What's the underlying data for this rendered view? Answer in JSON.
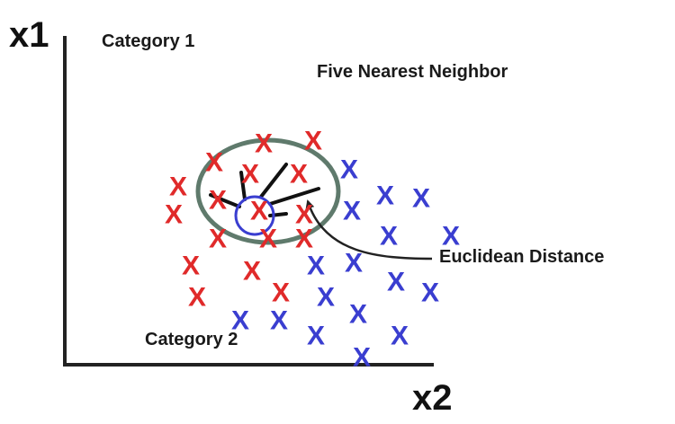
{
  "axes": {
    "x_label": "x2",
    "y_label": "x1"
  },
  "labels": {
    "category_1": "Category 1",
    "category_2": "Category 2",
    "title": "Five Nearest Neighbor",
    "distance": "Euclidean Distance"
  },
  "marker_symbol": "X",
  "colors": {
    "category_1": "#e02a2a",
    "category_2": "#3a3ed0",
    "boundary": "#5f7a6c",
    "axis": "#222222"
  },
  "category_1_points": [
    [
      2.76,
      2.49
    ],
    [
      2.21,
      2.46
    ],
    [
      1.66,
      2.25
    ],
    [
      2.06,
      2.12
    ],
    [
      2.6,
      2.12
    ],
    [
      1.26,
      1.98
    ],
    [
      1.7,
      1.83
    ],
    [
      2.16,
      1.71
    ],
    [
      1.21,
      1.67
    ],
    [
      2.66,
      1.67
    ],
    [
      1.7,
      1.4
    ],
    [
      2.26,
      1.4
    ],
    [
      2.66,
      1.4
    ],
    [
      1.4,
      1.1
    ],
    [
      2.08,
      1.04
    ],
    [
      1.47,
      0.75
    ],
    [
      2.4,
      0.8
    ]
  ],
  "category_2_points": [
    [
      3.16,
      2.17
    ],
    [
      3.56,
      1.88
    ],
    [
      3.96,
      1.85
    ],
    [
      3.19,
      1.71
    ],
    [
      3.6,
      1.43
    ],
    [
      4.29,
      1.43
    ],
    [
      3.21,
      1.13
    ],
    [
      3.68,
      0.92
    ],
    [
      4.06,
      0.8
    ],
    [
      2.9,
      0.75
    ],
    [
      1.95,
      0.49
    ],
    [
      2.38,
      0.49
    ],
    [
      3.26,
      0.56
    ],
    [
      2.79,
      0.32
    ],
    [
      3.72,
      0.32
    ],
    [
      3.3,
      0.08
    ]
  ],
  "query_point": [
    2.79,
    1.1
  ]
}
